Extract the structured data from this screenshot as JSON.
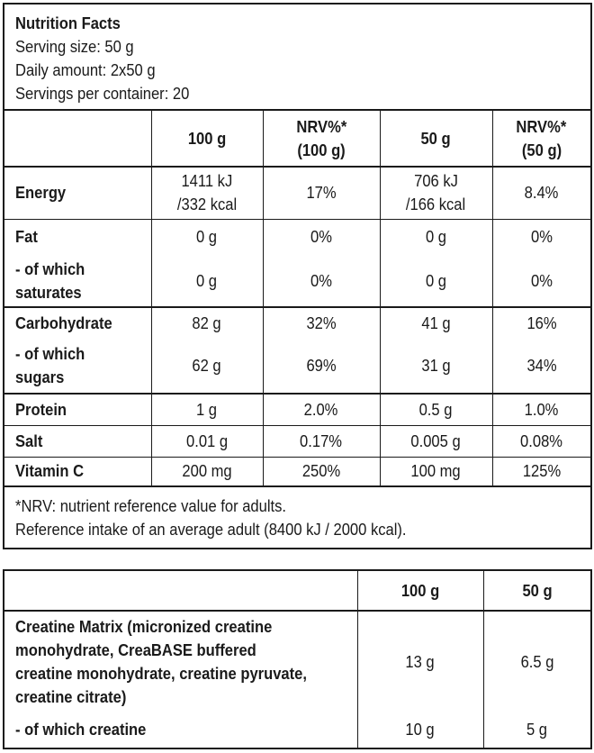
{
  "nutrition": {
    "title": "Nutrition Facts",
    "serving_size": "Serving size: 50 g",
    "daily_amount": "Daily amount: 2x50 g",
    "servings_per_container": "Servings per container: 20",
    "columns": [
      "",
      "100 g",
      "NRV%*\n(100 g)",
      "50 g",
      "NRV%*\n(50 g)"
    ],
    "col_100g": "100 g",
    "col_nrv100_a": "NRV%*",
    "col_nrv100_b": "(100 g)",
    "col_50g": "50 g",
    "col_nrv50_a": "NRV%*",
    "col_nrv50_b": "(50 g)",
    "rows": [
      {
        "label": "Energy",
        "v100_a": "1411 kJ",
        "v100_b": "/332 kcal",
        "nrv100": "17%",
        "v50_a": "706 kJ",
        "v50_b": "/166 kcal",
        "nrv50": "8.4%"
      },
      {
        "label": "Fat",
        "v100": "0 g",
        "nrv100": "0%",
        "v50": "0 g",
        "nrv50": "0%"
      },
      {
        "label_a": "- of which",
        "label_b": "saturates",
        "v100": "0 g",
        "nrv100": "0%",
        "v50": "0 g",
        "nrv50": "0%"
      },
      {
        "label": "Carbohydrate",
        "v100": "82 g",
        "nrv100": "32%",
        "v50": "41 g",
        "nrv50": "16%"
      },
      {
        "label_a": "- of which",
        "label_b": "sugars",
        "v100": "62 g",
        "nrv100": "69%",
        "v50": "31 g",
        "nrv50": "34%"
      },
      {
        "label": "Protein",
        "v100": "1 g",
        "nrv100": "2.0%",
        "v50": "0.5 g",
        "nrv50": "1.0%"
      },
      {
        "label": "Salt",
        "v100": "0.01 g",
        "nrv100": "0.17%",
        "v50": "0.005 g",
        "nrv50": "0.08%"
      },
      {
        "label": "Vitamin C",
        "v100": "200 mg",
        "nrv100": "250%",
        "v50": "100 mg",
        "nrv50": "125%"
      }
    ],
    "footnote_1": "*NRV: nutrient reference value for adults.",
    "footnote_2": "Reference intake of an average adult (8400 kJ / 2000 kcal)."
  },
  "creatine": {
    "col_100g": "100 g",
    "col_50g": "50 g",
    "rows": [
      {
        "label_lines": [
          "Creatine Matrix (micronized creatine",
          "monohydrate, CreaBASE buffered",
          "creatine monohydrate, creatine pyruvate,",
          "creatine citrate)"
        ],
        "v100": "13 g",
        "v50": "6.5 g"
      },
      {
        "label": "- of which creatine",
        "v100": "10 g",
        "v50": "5 g"
      }
    ]
  }
}
